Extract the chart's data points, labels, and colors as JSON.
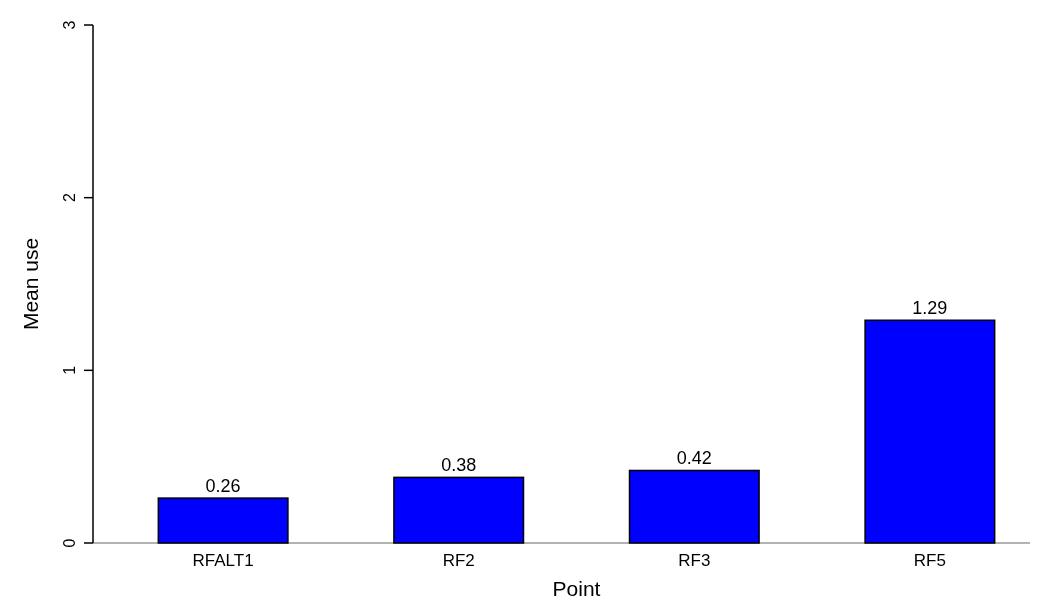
{
  "chart_data": {
    "type": "bar",
    "xlabel": "Point",
    "ylabel": "Mean use",
    "categories": [
      "RFALT1",
      "RF2",
      "RF3",
      "RF5"
    ],
    "values": [
      0.26,
      0.38,
      0.42,
      1.29
    ],
    "color": "#0000ff",
    "ylim": [
      0,
      3
    ],
    "yticks": [
      0,
      1,
      2,
      3
    ],
    "data_labels": true,
    "grid": false
  }
}
